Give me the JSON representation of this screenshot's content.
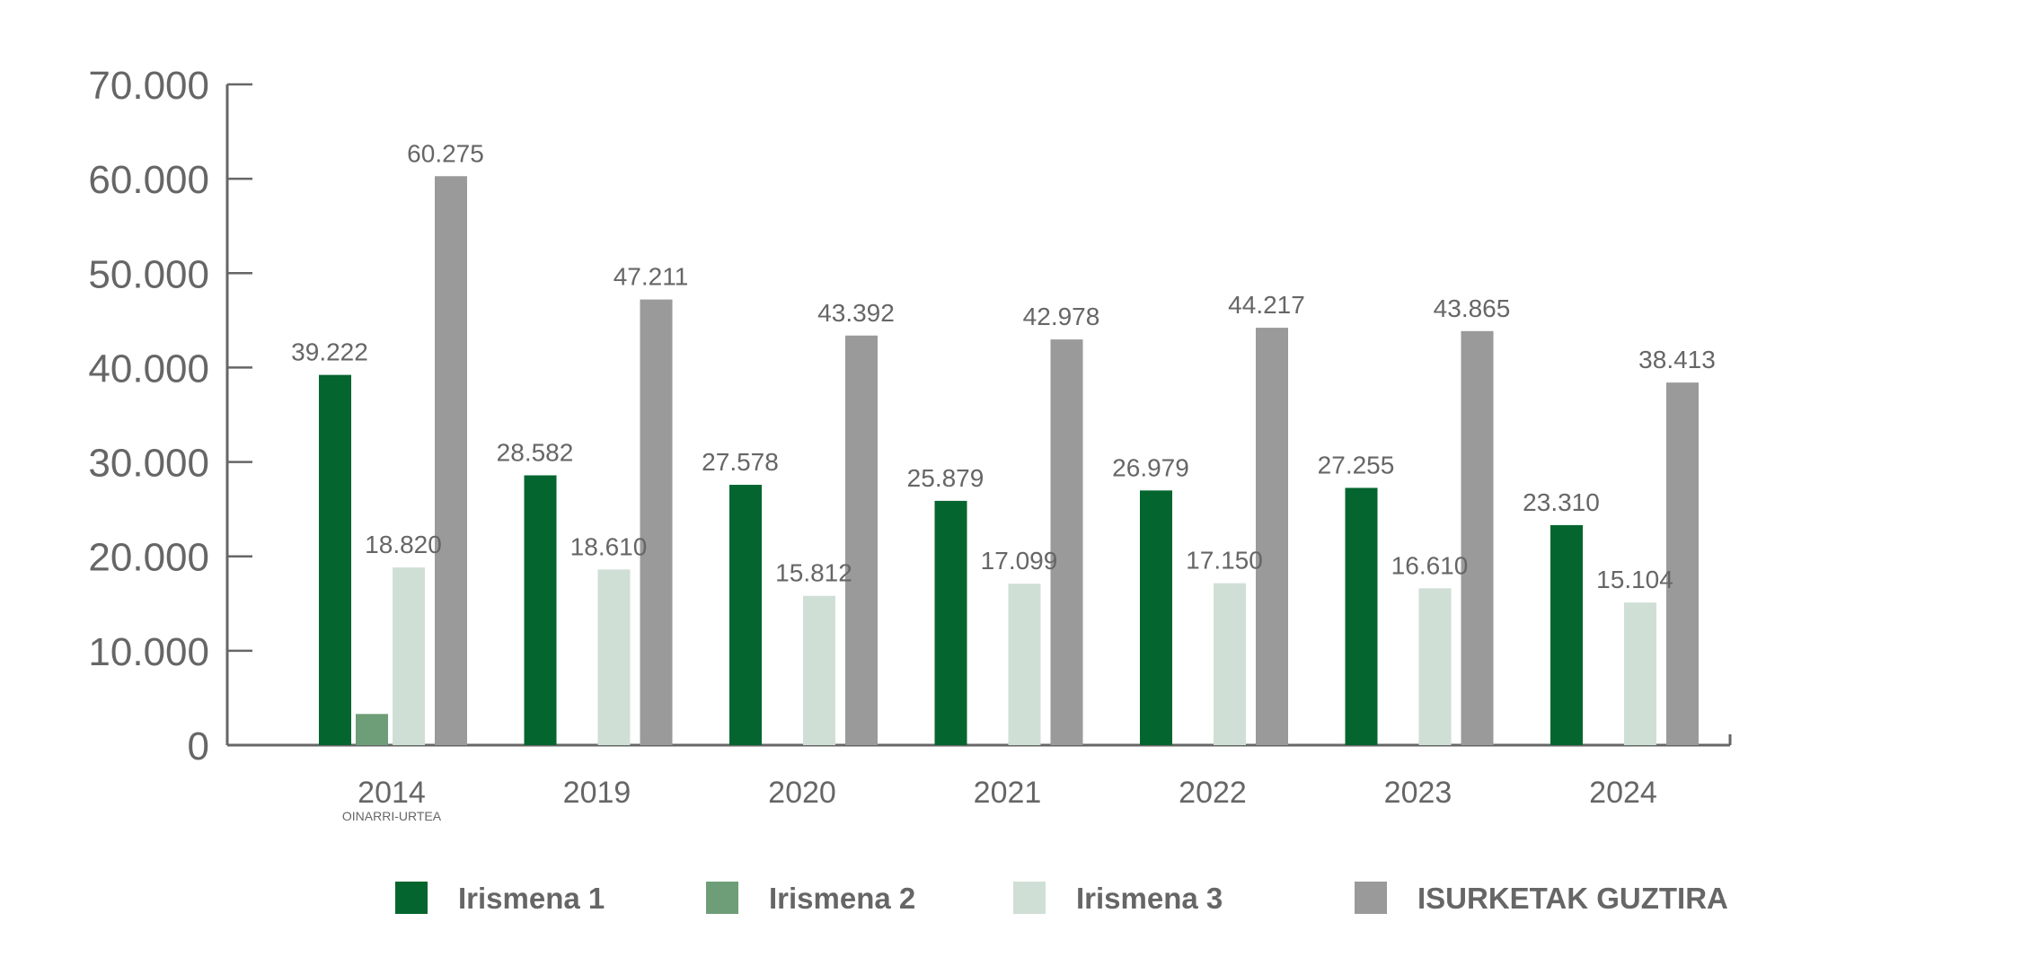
{
  "chart_data": {
    "type": "bar",
    "title": "",
    "xlabel": "",
    "ylabel": "",
    "ylim": [
      0,
      70000
    ],
    "yticks": [
      0,
      10000,
      20000,
      30000,
      40000,
      50000,
      60000,
      70000
    ],
    "ytick_labels": [
      "0",
      "10.000",
      "20.000",
      "30.000",
      "40.000",
      "50.000",
      "60.000",
      "70.000"
    ],
    "grid": false,
    "legend_position": "bottom",
    "categories": [
      "2014",
      "2019",
      "2020",
      "2021",
      "2022",
      "2023",
      "2024"
    ],
    "category_sublabels": [
      "OINARRI-URTEA",
      "",
      "",
      "",
      "",
      "",
      ""
    ],
    "series": [
      {
        "name": "Irismena 1",
        "color": "#04652f",
        "values": [
          39222,
          28582,
          27578,
          25879,
          26979,
          27255,
          23310
        ],
        "labels": [
          "39.222",
          "28.582",
          "27.578",
          "25.879",
          "26.979",
          "27.255",
          "23.310"
        ]
      },
      {
        "name": "Irismena 2",
        "color": "#6e9e78",
        "values": [
          3300,
          null,
          null,
          null,
          null,
          null,
          null
        ],
        "labels": [
          "",
          "",
          "",
          "",
          "",
          "",
          ""
        ]
      },
      {
        "name": "Irismena 3",
        "color": "#cfdfd5",
        "values": [
          18820,
          18610,
          15812,
          17099,
          17150,
          16610,
          15104
        ],
        "labels": [
          "18.820",
          "18.610",
          "15.812",
          "17.099",
          "17.150",
          "16.610",
          "15.104"
        ]
      },
      {
        "name": "ISURKETAK GUZTIRA",
        "color": "#9a9a9a",
        "values": [
          60275,
          47211,
          43392,
          42978,
          44217,
          43865,
          38413
        ],
        "labels": [
          "60.275",
          "47.211",
          "43.392",
          "42.978",
          "44.217",
          "43.865",
          "38.413"
        ]
      }
    ]
  }
}
